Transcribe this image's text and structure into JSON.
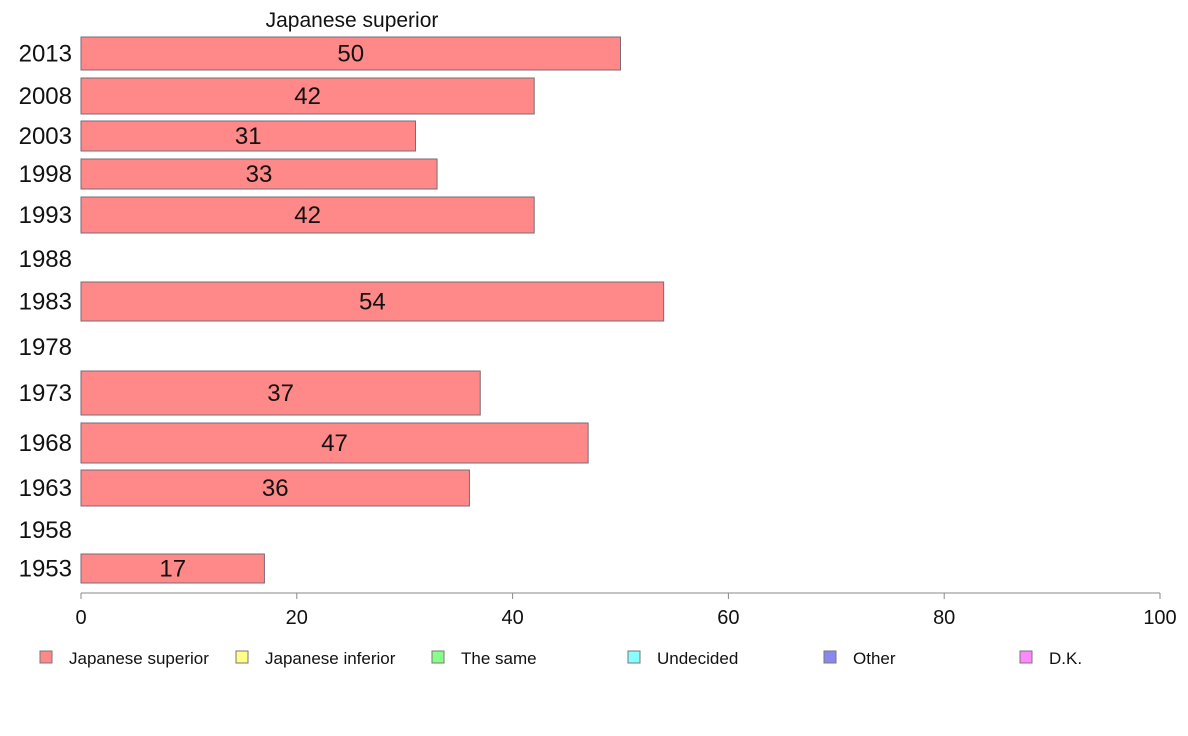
{
  "chart_data": {
    "type": "bar",
    "orientation": "horizontal",
    "title": "Japanese superior",
    "categories": [
      "2013",
      "2008",
      "2003",
      "1998",
      "1993",
      "1988",
      "1983",
      "1978",
      "1973",
      "1968",
      "1963",
      "1958",
      "1953"
    ],
    "series": [
      {
        "name": "Japanese superior",
        "values": [
          50,
          42,
          31,
          33,
          42,
          null,
          54,
          null,
          37,
          47,
          36,
          null,
          17
        ],
        "color": "#FF8888"
      }
    ],
    "xlim": [
      0,
      100
    ],
    "xticks": [
      0,
      20,
      40,
      60,
      80,
      100
    ],
    "grid": false,
    "legend": {
      "position": "bottom",
      "entries": [
        {
          "label": "Japanese superior",
          "color": "#FF8888"
        },
        {
          "label": "Japanese inferior",
          "color": "#FFFF88"
        },
        {
          "label": "The same",
          "color": "#88FF88"
        },
        {
          "label": "Undecided",
          "color": "#88FFFF"
        },
        {
          "label": "Other",
          "color": "#8888EE"
        },
        {
          "label": "D.K.",
          "color": "#FF88FF"
        }
      ]
    }
  }
}
